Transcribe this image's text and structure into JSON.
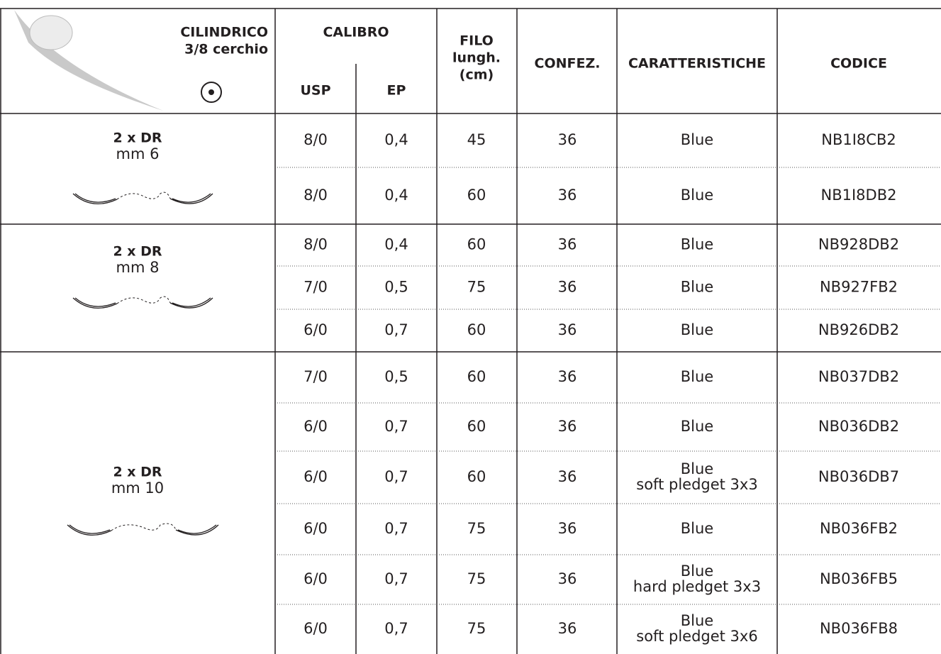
{
  "header": {
    "needle": [
      "CILINDRICO",
      "3/8 cerchio"
    ],
    "calibro": "CALIBRO",
    "usp": "USP",
    "ep": "EP",
    "filo": [
      "FILO",
      "lungh.",
      "(cm)"
    ],
    "confez": "CONFEZ.",
    "caratteristiche": "CARATTERISTICHE",
    "codice": "CODICE"
  },
  "groups": [
    {
      "label": "2 x DR",
      "size": "mm 6",
      "rows": [
        [
          "8/0",
          "0,4",
          "45",
          "36",
          [
            "Blue"
          ],
          "NB1I8CB2"
        ],
        [
          "8/0",
          "0,4",
          "60",
          "36",
          [
            "Blue"
          ],
          "NB1I8DB2"
        ]
      ]
    },
    {
      "label": "2 x DR",
      "size": "mm 8",
      "rows": [
        [
          "8/0",
          "0,4",
          "60",
          "36",
          [
            "Blue"
          ],
          "NB928DB2"
        ],
        [
          "7/0",
          "0,5",
          "75",
          "36",
          [
            "Blue"
          ],
          "NB927FB2"
        ],
        [
          "6/0",
          "0,7",
          "60",
          "36",
          [
            "Blue"
          ],
          "NB926DB2"
        ]
      ]
    },
    {
      "label": "2 x DR",
      "size": "mm 10",
      "rows": [
        [
          "7/0",
          "0,5",
          "60",
          "36",
          [
            "Blue"
          ],
          "NB037DB2"
        ],
        [
          "6/0",
          "0,7",
          "60",
          "36",
          [
            "Blue"
          ],
          "NB036DB2"
        ],
        [
          "6/0",
          "0,7",
          "60",
          "36",
          [
            "Blue",
            "soft pledget 3x3"
          ],
          "NB036DB7"
        ],
        [
          "6/0",
          "0,7",
          "75",
          "36",
          [
            "Blue"
          ],
          "NB036FB2"
        ],
        [
          "6/0",
          "0,7",
          "75",
          "36",
          [
            "Blue",
            "hard pledget 3x3"
          ],
          "NB036FB5"
        ],
        [
          "6/0",
          "0,7",
          "75",
          "36",
          [
            "Blue",
            "soft pledget 3x6"
          ],
          "NB036FB8"
        ]
      ]
    }
  ]
}
